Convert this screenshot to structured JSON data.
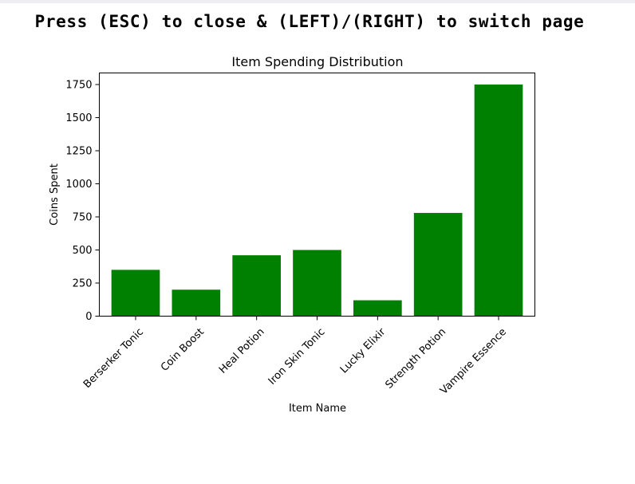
{
  "header": {
    "instructions": "Press (ESC) to close & (LEFT)/(RIGHT) to switch page"
  },
  "chart_data": {
    "type": "bar",
    "title": "Item Spending Distribution",
    "xlabel": "Item Name",
    "ylabel": "Coins Spent",
    "categories": [
      "Berserker Tonic",
      "Coin Boost",
      "Heal Potion",
      "Iron Skin Tonic",
      "Lucky Elixir",
      "Strength Potion",
      "Vampire Essence"
    ],
    "values": [
      350,
      200,
      460,
      500,
      120,
      780,
      1750
    ],
    "ylim": [
      0,
      1837.5
    ],
    "yticks": [
      0,
      250,
      500,
      750,
      1000,
      1250,
      1500,
      1750
    ],
    "bar_color": "#008000",
    "grid": false
  }
}
